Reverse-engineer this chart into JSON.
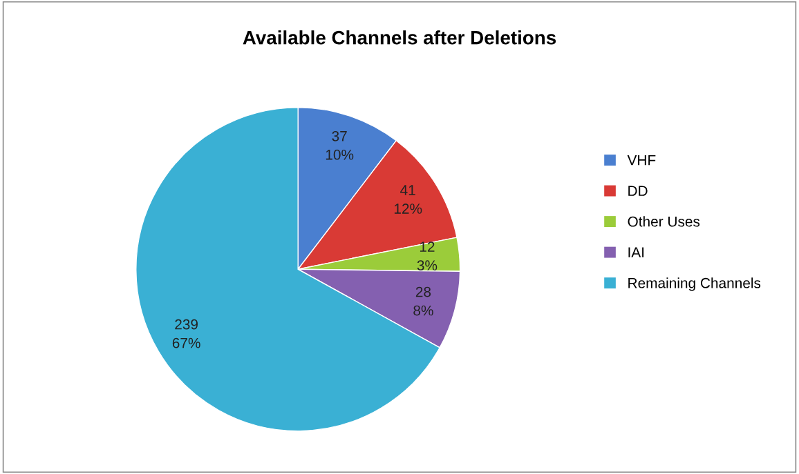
{
  "chart_data": {
    "type": "pie",
    "title": "Available Channels after Deletions",
    "categories": [
      "VHF",
      "DD",
      "Other Uses",
      "IAI",
      "Remaining Channels"
    ],
    "values": [
      37,
      41,
      12,
      28,
      239
    ],
    "value_labels": [
      "37\n10%",
      "41\n12%",
      "12\n3%",
      "28\n8%",
      "239\n67%"
    ],
    "colors": [
      "#4a7fd0",
      "#d93a35",
      "#9bcc3a",
      "#8460b0",
      "#3ab0d4"
    ],
    "legend": "right"
  }
}
